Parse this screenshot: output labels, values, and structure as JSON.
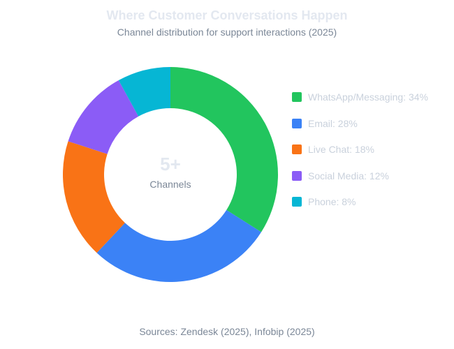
{
  "chart_data": {
    "type": "pie",
    "title": "Where Customer Conversations Happen",
    "subtitle": "Channel distribution for support interactions (2025)",
    "categories": [
      "WhatsApp/Messaging",
      "Email",
      "Live Chat",
      "Social Media",
      "Phone"
    ],
    "values": [
      34,
      28,
      18,
      12,
      8
    ],
    "unit": "%",
    "colors": [
      "#22c55e",
      "#3b82f6",
      "#f97316",
      "#8b5cf6",
      "#06b6d4"
    ],
    "donut": true,
    "center_value": "5+",
    "center_label": "Channels",
    "legend_position": "right",
    "legend_labels": [
      "WhatsApp/Messaging: 34%",
      "Email: 28%",
      "Live Chat: 18%",
      "Social Media: 12%",
      "Phone: 8%"
    ],
    "source": "Sources: Zendesk (2025), Infobip (2025)"
  }
}
